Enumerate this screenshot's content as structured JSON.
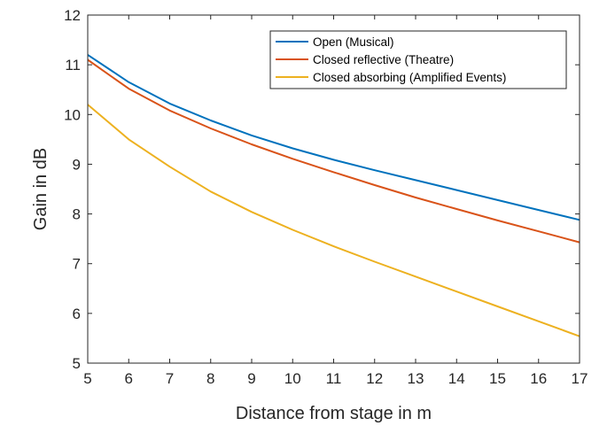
{
  "chart_data": {
    "type": "line",
    "title": "",
    "xlabel": "Distance from stage in m",
    "ylabel": "Gain in dB",
    "xlim": [
      5,
      17
    ],
    "ylim": [
      5,
      12
    ],
    "xticks": [
      5,
      6,
      7,
      8,
      9,
      10,
      11,
      12,
      13,
      14,
      15,
      16,
      17
    ],
    "yticks": [
      5,
      6,
      7,
      8,
      9,
      10,
      11,
      12
    ],
    "grid": false,
    "legend_position": "top-right",
    "x": [
      5,
      6,
      7,
      8,
      9,
      10,
      11,
      12,
      13,
      14,
      15,
      16,
      17
    ],
    "series": [
      {
        "name": "Open (Musical)",
        "color": "#0072BD",
        "values": [
          11.2,
          10.65,
          10.22,
          9.88,
          9.58,
          9.32,
          9.09,
          8.88,
          8.68,
          8.48,
          8.28,
          8.08,
          7.88
        ]
      },
      {
        "name": "Closed reflective (Theatre)",
        "color": "#D95319",
        "values": [
          11.1,
          10.52,
          10.08,
          9.72,
          9.4,
          9.11,
          8.84,
          8.58,
          8.33,
          8.1,
          7.87,
          7.65,
          7.43
        ]
      },
      {
        "name": "Closed absorbing (Amplified Events)",
        "color": "#EDB120",
        "values": [
          10.2,
          9.5,
          8.95,
          8.45,
          8.04,
          7.68,
          7.35,
          7.04,
          6.74,
          6.44,
          6.14,
          5.84,
          5.54
        ]
      }
    ]
  }
}
